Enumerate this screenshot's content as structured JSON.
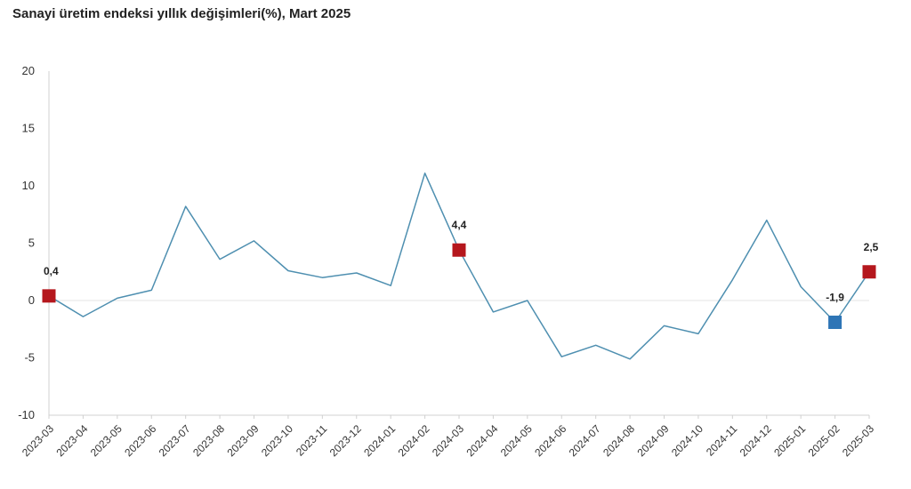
{
  "chart_data": {
    "type": "line",
    "title": "Sanayi üretim endeksi yıllık değişimleri(%), Mart 2025",
    "xlabel": "",
    "ylabel": "",
    "ylim": [
      -10,
      20
    ],
    "yticks": [
      -10,
      -5,
      0,
      5,
      10,
      15,
      20
    ],
    "grid": false,
    "categories": [
      "2023-03",
      "2023-04",
      "2023-05",
      "2023-06",
      "2023-07",
      "2023-08",
      "2023-09",
      "2023-10",
      "2023-11",
      "2023-12",
      "2024-01",
      "2024-02",
      "2024-03",
      "2024-04",
      "2024-05",
      "2024-06",
      "2024-07",
      "2024-08",
      "2024-09",
      "2024-10",
      "2024-11",
      "2024-12",
      "2025-01",
      "2025-02",
      "2025-03"
    ],
    "series": [
      {
        "values": [
          0.4,
          -1.4,
          0.2,
          0.9,
          8.2,
          3.6,
          5.2,
          2.6,
          2.0,
          2.4,
          1.3,
          11.1,
          4.4,
          -1.0,
          0.0,
          -4.9,
          -3.9,
          -5.1,
          -2.2,
          -2.9,
          1.8,
          7.0,
          1.2,
          -1.9,
          2.5
        ]
      }
    ],
    "highlights": [
      {
        "category": "2023-03",
        "value": 0.4,
        "label": "0,4",
        "color": "#b5171d"
      },
      {
        "category": "2024-03",
        "value": 4.4,
        "label": "4,4",
        "color": "#b5171d"
      },
      {
        "category": "2025-02",
        "value": -1.9,
        "label": "-1,9",
        "color": "#2e75b6"
      },
      {
        "category": "2025-03",
        "value": 2.5,
        "label": "2,5",
        "color": "#b5171d"
      }
    ],
    "colors": {
      "line": "#4e8fb0",
      "axis": "#d0d0d0",
      "zero_line": "#e6e6e6"
    }
  }
}
